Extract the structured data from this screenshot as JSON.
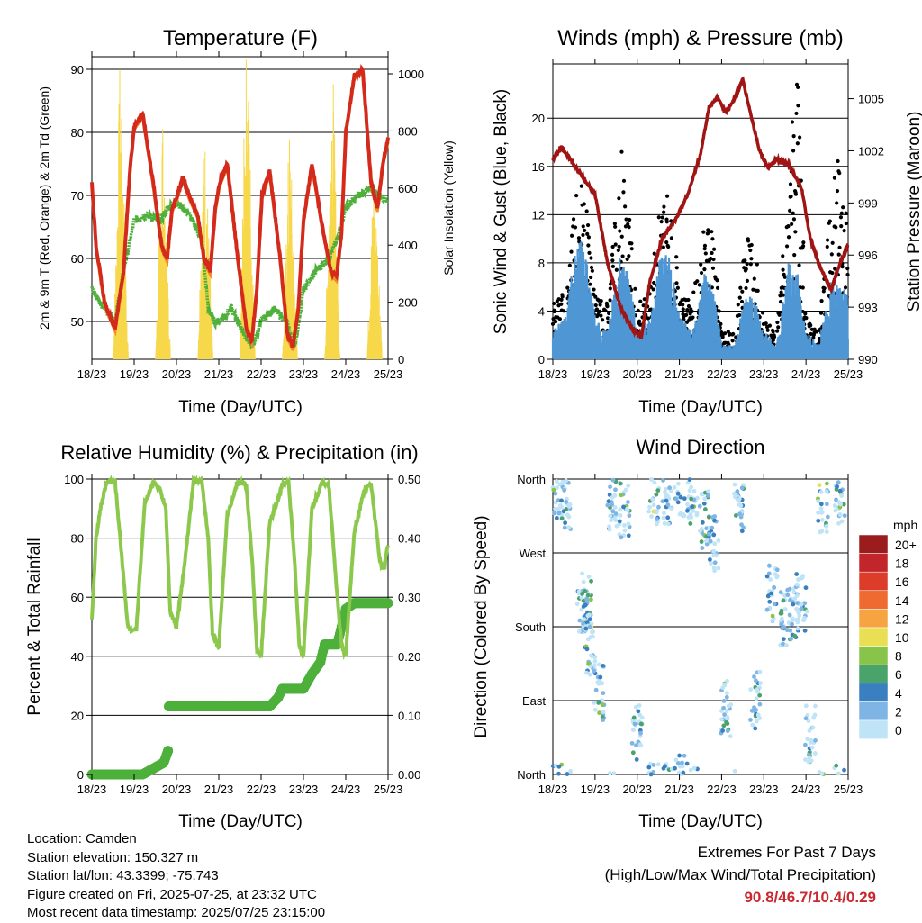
{
  "x_ticks": [
    "18/23",
    "19/23",
    "20/23",
    "21/23",
    "22/23",
    "23/23",
    "24/23",
    "25/23"
  ],
  "panels": {
    "temperature": {
      "title": "Temperature (F)",
      "xlabel": "Time (Day/UTC)",
      "ylabel_left": "2m & 9m T (Red, Orange) & 2m Td (Green)",
      "ylabel_right": "Solar Insolation (Yellow)",
      "yticks_left": [
        "50",
        "60",
        "70",
        "80",
        "90"
      ],
      "yticks_right": [
        "0",
        "200",
        "400",
        "600",
        "800",
        "1000"
      ]
    },
    "winds": {
      "title": "Winds (mph) & Pressure (mb)",
      "xlabel": "Time (Day/UTC)",
      "ylabel_left": "Sonic Wind & Gust (Blue, Black)",
      "ylabel_right": "Station Pressure (Maroon)",
      "yticks_left": [
        "0",
        "4",
        "8",
        "12",
        "16",
        "20"
      ],
      "yticks_right": [
        "990",
        "993",
        "996",
        "999",
        "1002",
        "1005"
      ]
    },
    "humidity": {
      "title": "Relative Humidity (%) & Precipitation (in)",
      "xlabel": "Time (Day/UTC)",
      "ylabel_left": "Percent & Total Rainfall",
      "yticks_left": [
        "0",
        "20",
        "40",
        "60",
        "80",
        "100"
      ],
      "yticks_right": [
        "0.00",
        "0.10",
        "0.20",
        "0.30",
        "0.40",
        "0.50"
      ]
    },
    "direction": {
      "title": "Wind Direction",
      "xlabel": "Time (Day/UTC)",
      "ylabel_left": "Direction (Colored By Speed)",
      "yticks_left": [
        "North",
        "East",
        "South",
        "West",
        "North"
      ],
      "legend_title": "mph",
      "legend_labels": [
        "20+",
        "18",
        "16",
        "14",
        "12",
        "10",
        "8",
        "6",
        "4",
        "2",
        "0"
      ],
      "legend_colors": [
        "#9b1c1c",
        "#c2252a",
        "#dc3c2a",
        "#ee6a31",
        "#f6a442",
        "#e9df55",
        "#88c34a",
        "#4aa36a",
        "#3a7fc0",
        "#7eb5e4",
        "#bfe3f7"
      ]
    }
  },
  "footer": {
    "location": "Location: Camden",
    "elevation": "Station elevation: 150.327 m",
    "latlon": "Station lat/lon: 43.3399; -75.743",
    "created": "Figure created on Fri, 2025-07-25, at 23:32 UTC",
    "recent": "Most recent data timestamp: 2025/07/25 23:15:00"
  },
  "extremes": {
    "line1": "Extremes For Past 7 Days",
    "line2": "(High/Low/Max Wind/Total Precipitation)",
    "values": "90.8/46.7/10.4/0.29"
  },
  "colors": {
    "temp_2m": "#d42a1c",
    "temp_9m": "#f08a2a",
    "dewpoint": "#4cb03a",
    "solar": "#f7d84a",
    "wind": "#4f97d4",
    "gust": "#000000",
    "pressure": "#a01414",
    "rh": "#8cc84b",
    "precip": "#4cb03a"
  },
  "chart_data": [
    {
      "type": "line",
      "title": "Temperature (F)",
      "xlabel": "Time (Day/UTC)",
      "ylabel": "2m & 9m T (Red, Orange) & 2m Td (Green)",
      "ylim": [
        44,
        92
      ],
      "y2label": "Solar Insolation (Yellow)",
      "y2lim": [
        0,
        1060
      ],
      "x_unit": "days since 18/23 UTC",
      "series": [
        {
          "name": "2m T",
          "x": [
            0,
            0.1,
            0.3,
            0.55,
            0.75,
            0.9,
            1.0,
            1.2,
            1.45,
            1.65,
            1.78,
            1.9,
            2.02,
            2.15,
            2.3,
            2.5,
            2.65,
            2.8,
            2.92,
            3.02,
            3.2,
            3.45,
            3.65,
            3.78,
            3.9,
            4.02,
            4.2,
            4.45,
            4.62,
            4.75,
            4.88,
            5.0,
            5.2,
            5.45,
            5.65,
            5.78,
            5.9,
            6.0,
            6.2,
            6.4,
            6.6,
            6.75,
            6.9,
            7.0
          ],
          "y": [
            72,
            62,
            53,
            49,
            58,
            74,
            81,
            83,
            72,
            62,
            60,
            68,
            70,
            73,
            70,
            67,
            60,
            58,
            68,
            72,
            75,
            60,
            49,
            47,
            55,
            70,
            74,
            60,
            48,
            46,
            52,
            66,
            75,
            65,
            58,
            57,
            64,
            80,
            89,
            90,
            72,
            68,
            76,
            79
          ]
        },
        {
          "name": "2m Td",
          "x": [
            0,
            0.2,
            0.55,
            0.75,
            1.0,
            1.3,
            1.6,
            1.8,
            2.0,
            2.3,
            2.6,
            2.75,
            2.9,
            3.0,
            3.3,
            3.6,
            3.8,
            4.0,
            4.3,
            4.6,
            4.8,
            5.0,
            5.3,
            5.6,
            5.8,
            6.0,
            6.3,
            6.6,
            6.8,
            7.0
          ],
          "y": [
            55,
            53,
            50,
            58,
            66,
            67,
            66,
            68,
            69,
            67,
            63,
            52,
            50,
            50,
            52,
            48,
            46,
            50,
            52,
            50,
            46,
            55,
            58,
            60,
            63,
            68,
            70,
            71,
            70,
            69
          ]
        },
        {
          "name": "Solar Insolation",
          "axis": "y2",
          "x": [
            0.5,
            0.58,
            0.66,
            0.7,
            0.78,
            0.86,
            1.5,
            1.58,
            1.66,
            1.7,
            1.78,
            1.86,
            2.5,
            2.58,
            2.66,
            2.7,
            2.78,
            2.86,
            3.5,
            3.58,
            3.66,
            3.7,
            3.78,
            3.86,
            4.5,
            4.58,
            4.66,
            4.7,
            4.78,
            4.86,
            5.5,
            5.58,
            5.66,
            5.7,
            5.78,
            5.86,
            6.5,
            6.58,
            6.66,
            6.7,
            6.78,
            6.86
          ],
          "y": [
            0,
            400,
            900,
            700,
            400,
            0,
            0,
            350,
            800,
            500,
            300,
            0,
            0,
            400,
            700,
            600,
            300,
            0,
            0,
            600,
            1000,
            800,
            400,
            0,
            0,
            300,
            700,
            600,
            300,
            0,
            0,
            400,
            900,
            850,
            400,
            0,
            0,
            300,
            600,
            500,
            300,
            0
          ]
        }
      ]
    },
    {
      "type": "line",
      "title": "Winds (mph) & Pressure (mb)",
      "xlabel": "Time (Day/UTC)",
      "ylabel": "Sonic Wind & Gust (Blue, Black)",
      "ylim": [
        0,
        24.5
      ],
      "y2label": "Station Pressure (Maroon)",
      "y2lim": [
        990,
        1007
      ],
      "x_unit": "days since 18/23 UTC",
      "series": [
        {
          "name": "Station Pressure",
          "axis": "y2",
          "x": [
            0,
            0.2,
            0.5,
            1.0,
            1.3,
            1.6,
            1.9,
            2.1,
            2.3,
            2.6,
            2.9,
            3.2,
            3.5,
            3.7,
            3.9,
            4.1,
            4.3,
            4.5,
            4.7,
            4.9,
            5.1,
            5.3,
            5.6,
            5.9,
            6.1,
            6.3,
            6.6,
            6.8,
            7.0
          ],
          "y": [
            1001.5,
            1002.2,
            1001.2,
            999.5,
            995.5,
            993.0,
            991.7,
            991.3,
            994.5,
            997.0,
            998.0,
            999.5,
            1001.8,
            1004.5,
            1005.1,
            1004.2,
            1005.0,
            1006.1,
            1004.0,
            1002.0,
            1001.0,
            1001.5,
            1001.2,
            999.8,
            997.0,
            995.5,
            994.0,
            995.5,
            996.6
          ]
        },
        {
          "name": "Sonic Wind",
          "x": [
            0,
            0.3,
            0.6,
            0.8,
            1.0,
            1.3,
            1.6,
            1.8,
            2.0,
            2.3,
            2.6,
            2.8,
            3.0,
            3.3,
            3.6,
            3.8,
            4.0,
            4.3,
            4.6,
            4.8,
            5.0,
            5.3,
            5.6,
            5.8,
            6.0,
            6.3,
            6.6,
            6.8,
            7.0
          ],
          "y": [
            2,
            3,
            9,
            7,
            3,
            2,
            8,
            6,
            2,
            3,
            8,
            7,
            3,
            2,
            6,
            5,
            1,
            1,
            5,
            4,
            2,
            1,
            7,
            6,
            2,
            1,
            6,
            5,
            5
          ]
        },
        {
          "name": "Gust",
          "x": [
            0,
            0.3,
            0.6,
            0.8,
            1.0,
            1.3,
            1.6,
            1.8,
            2.0,
            2.3,
            2.6,
            2.8,
            3.0,
            3.3,
            3.6,
            3.8,
            4.0,
            4.3,
            4.6,
            4.8,
            5.0,
            5.3,
            5.6,
            5.8,
            6.0,
            6.3,
            6.6,
            6.8,
            7.0
          ],
          "y": [
            4,
            5,
            14,
            11,
            5,
            4,
            16,
            12,
            4,
            5,
            13,
            12,
            5,
            4,
            11,
            9,
            2,
            2,
            10,
            8,
            3,
            2,
            15,
            22,
            3,
            2,
            12,
            15,
            9
          ]
        }
      ]
    },
    {
      "type": "line",
      "title": "Relative Humidity (%) & Precipitation (in)",
      "xlabel": "Time (Day/UTC)",
      "ylabel": "Percent & Total Rainfall",
      "ylim": [
        0,
        100
      ],
      "y2lim": [
        0,
        0.5
      ],
      "x_unit": "days since 18/23 UTC",
      "series": [
        {
          "name": "Relative Humidity",
          "x": [
            0,
            0.1,
            0.2,
            0.35,
            0.55,
            0.7,
            0.85,
            0.95,
            1.05,
            1.25,
            1.45,
            1.6,
            1.75,
            1.85,
            2.0,
            2.2,
            2.4,
            2.6,
            2.75,
            2.85,
            3.0,
            3.2,
            3.45,
            3.65,
            3.8,
            3.9,
            4.0,
            4.2,
            4.5,
            4.65,
            4.8,
            4.9,
            5.0,
            5.2,
            5.45,
            5.6,
            5.8,
            5.9,
            6.0,
            6.2,
            6.45,
            6.6,
            6.8,
            6.9,
            7.0
          ],
          "y": [
            52,
            80,
            90,
            99,
            99,
            75,
            50,
            48,
            49,
            92,
            99,
            97,
            90,
            55,
            50,
            72,
            99,
            99,
            80,
            48,
            43,
            88,
            99,
            98,
            70,
            42,
            40,
            85,
            98,
            99,
            70,
            44,
            40,
            90,
            99,
            98,
            60,
            44,
            40,
            82,
            97,
            98,
            73,
            69,
            78
          ]
        },
        {
          "name": "Total Precipitation",
          "axis": "y2",
          "x": [
            0,
            1.2,
            1.7,
            1.8,
            1.82,
            3.0,
            4.2,
            4.4,
            4.5,
            5.0,
            5.2,
            5.4,
            5.5,
            5.8,
            6.0,
            6.2,
            7.0
          ],
          "y": [
            0,
            0,
            0.02,
            0.04,
            0.115,
            0.115,
            0.115,
            0.13,
            0.145,
            0.145,
            0.17,
            0.19,
            0.22,
            0.22,
            0.28,
            0.29,
            0.29
          ]
        }
      ]
    },
    {
      "type": "scatter",
      "title": "Wind Direction",
      "xlabel": "Time (Day/UTC)",
      "ylabel": "Direction (Colored By Speed)",
      "y_categories": [
        "North",
        "East",
        "South",
        "West",
        "North"
      ],
      "legend_title": "mph",
      "legend": [
        "20+",
        "18",
        "16",
        "14",
        "12",
        "10",
        "8",
        "6",
        "4",
        "2",
        "0"
      ],
      "x_unit": "days since 18/23 UTC",
      "series": [
        {
          "name": "Wind Direction",
          "x": [
            0.1,
            0.3,
            0.7,
            0.8,
            0.9,
            1.1,
            1.4,
            1.7,
            2.0,
            2.4,
            2.7,
            3.0,
            3.3,
            3.6,
            3.8,
            4.1,
            4.4,
            4.8,
            5.2,
            5.5,
            5.7,
            5.9,
            6.1,
            6.4,
            6.8
          ],
          "y": [
            340,
            330,
            190,
            210,
            150,
            100,
            330,
            320,
            50,
            340,
            340,
            350,
            340,
            310,
            280,
            80,
            330,
            90,
            220,
            190,
            200,
            210,
            50,
            330,
            340
          ]
        }
      ]
    }
  ]
}
